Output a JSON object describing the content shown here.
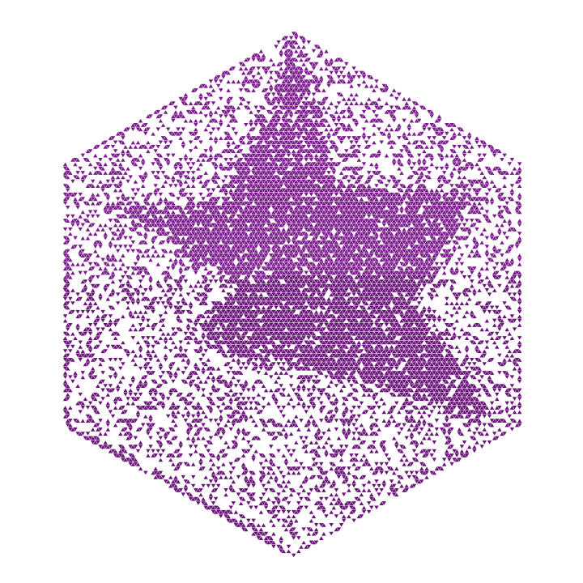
{
  "figure": {
    "shape": "hexagon",
    "fill_pattern": "triangular-lattice-random-tiles",
    "motif": "five-pointed-star",
    "colors": {
      "background": "#ffffff",
      "tile": "#7b1a8c",
      "tile_dark": "#6a1479"
    },
    "density": {
      "star": 0.9,
      "hexagon": 0.32
    }
  }
}
